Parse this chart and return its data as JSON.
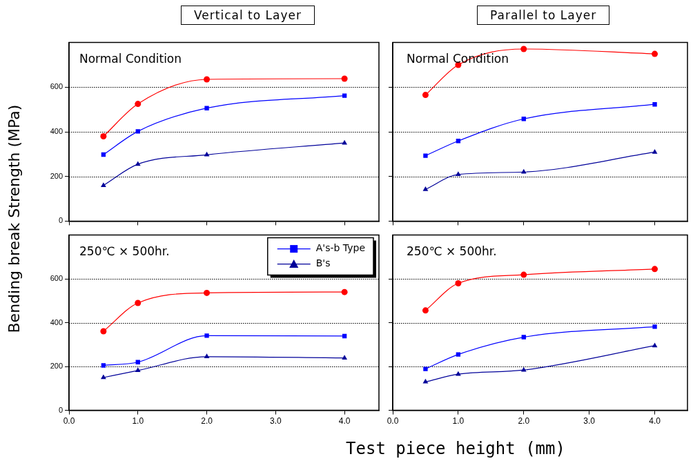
{
  "chart_data": [
    {
      "type": "line",
      "title": "Vertical to Layer",
      "ylabel": "Bending break Strength (MPa)",
      "annotations": [
        "Normal Condition"
      ],
      "x": [
        0.5,
        1.0,
        2.0,
        4.0
      ],
      "xlim": [
        0,
        4.5
      ],
      "xticks": [
        {
          "value": 0,
          "label": null
        },
        {
          "value": 1,
          "label": null
        },
        {
          "value": 2,
          "label": null
        },
        {
          "value": 3,
          "label": null
        },
        {
          "value": 4,
          "label": null
        }
      ],
      "ylim": [
        0,
        800
      ],
      "yticks": [
        0,
        200,
        400,
        600
      ],
      "grid": "y",
      "tick_labels": "y",
      "series": [
        {
          "color": "#ff0000",
          "marker": "circle",
          "values": [
            380,
            525,
            635,
            638
          ]
        },
        {
          "color": "#0000ff",
          "marker": "square",
          "values": [
            298,
            402,
            506,
            562
          ]
        },
        {
          "color": "#000099",
          "marker": "triangle",
          "values": [
            160,
            255,
            297,
            350
          ]
        }
      ]
    },
    {
      "type": "line",
      "title": "Parallel to Layer",
      "annotations": [
        "Normal Condition"
      ],
      "x": [
        0.5,
        1.0,
        2.0,
        4.0
      ],
      "xlim": [
        0,
        4.5
      ],
      "xticks": [
        {
          "value": 0,
          "label": null
        },
        {
          "value": 1,
          "label": null
        },
        {
          "value": 2,
          "label": null
        },
        {
          "value": 3,
          "label": null
        },
        {
          "value": 4,
          "label": null
        }
      ],
      "ylim": [
        0,
        800
      ],
      "yticks": [
        {
          "value": 0,
          "label": null
        },
        {
          "value": 200,
          "label": null
        },
        {
          "value": 400,
          "label": null
        },
        {
          "value": 600,
          "label": null
        }
      ],
      "grid": "y",
      "tick_labels": false,
      "series": [
        {
          "color": "#ff0000",
          "marker": "circle",
          "values": [
            565,
            700,
            771,
            749
          ]
        },
        {
          "color": "#0000ff",
          "marker": "square",
          "values": [
            293,
            359,
            458,
            523
          ]
        },
        {
          "color": "#000099",
          "marker": "triangle",
          "values": [
            142,
            209,
            220,
            309
          ]
        }
      ]
    },
    {
      "type": "line",
      "annotations": [
        "250℃ × 500hr."
      ],
      "x": [
        0.5,
        1.0,
        2.0,
        4.0
      ],
      "xlim": [
        0,
        4.5
      ],
      "xticks": [
        {
          "value": 0,
          "label": "0.0"
        },
        {
          "value": 1,
          "label": "1.0"
        },
        {
          "value": 2,
          "label": "2.0"
        },
        {
          "value": 3,
          "label": "3.0"
        },
        {
          "value": 4,
          "label": "4.0"
        }
      ],
      "ylim": [
        0,
        800
      ],
      "yticks": [
        0,
        200,
        400,
        600
      ],
      "grid": "y",
      "legend": "top right",
      "series": [
        {
          "color": "#ff0000",
          "marker": "circle",
          "values": [
            361,
            490,
            536,
            540
          ]
        },
        {
          "name": "A's-b Type",
          "color": "#0000ff",
          "marker": "square",
          "values": [
            205,
            220,
            341,
            339
          ]
        },
        {
          "name": "B's",
          "color": "#000099",
          "marker": "triangle",
          "values": [
            150,
            182,
            245,
            239
          ]
        }
      ]
    },
    {
      "type": "line",
      "xlabel": "Test piece height (mm)",
      "annotations": [
        "250℃ × 500hr."
      ],
      "x": [
        0.5,
        1.0,
        2.0,
        4.0
      ],
      "xlim": [
        0,
        4.5
      ],
      "xticks": [
        {
          "value": 0,
          "label": "0.0"
        },
        {
          "value": 1,
          "label": "1.0"
        },
        {
          "value": 2,
          "label": "2.0"
        },
        {
          "value": 3,
          "label": "3.0"
        },
        {
          "value": 4,
          "label": "4.0"
        }
      ],
      "ylim": [
        0,
        800
      ],
      "yticks": [
        {
          "value": 0,
          "label": null
        },
        {
          "value": 200,
          "label": null
        },
        {
          "value": 400,
          "label": null
        },
        {
          "value": 600,
          "label": null
        }
      ],
      "grid": "y",
      "tick_labels": "x",
      "series": [
        {
          "color": "#ff0000",
          "marker": "circle",
          "values": [
            456,
            580,
            619,
            645
          ]
        },
        {
          "color": "#0000ff",
          "marker": "square",
          "values": [
            189,
            255,
            334,
            382
          ]
        },
        {
          "color": "#000099",
          "marker": "triangle",
          "values": [
            130,
            165,
            184,
            295
          ]
        }
      ]
    }
  ]
}
